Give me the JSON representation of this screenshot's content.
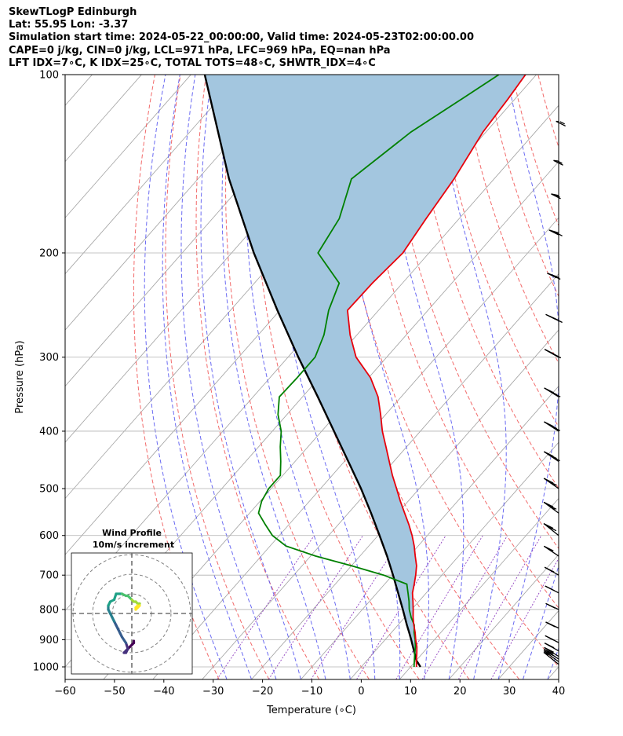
{
  "title_lines": [
    "SkewTLogP Edinburgh",
    "Lat: 55.95   Lon: -3.37",
    "Simulation start time: 2024-05-22_00:00:00, Valid time: 2024-05-23T02:00:00.00",
    "CAPE=0 j/kg, CIN=0 j/kg, LCL=971 hPa, LFC=969 hPa, EQ=nan hPa",
    "LFT IDX=7∘C, K IDX=25∘C, TOTAL TOTS=48∘C, SHWTR_IDX=4∘C"
  ],
  "colors": {
    "temperature": "#e8000b",
    "dewpoint": "#008000",
    "parcel": "#000000",
    "cape_fill": "#a3c6df",
    "dry_adiabat": "#f05050",
    "moist_adiabat": "#5050f0",
    "isotherm": "#a0a0a0",
    "mixing_ratio": "#9040c0"
  },
  "chart_data": {
    "type": "line",
    "subtype": "skew-t log-p",
    "xlabel": "Temperature (∘C)",
    "ylabel": "Pressure (hPa)",
    "xlim": [
      -60,
      40
    ],
    "ylim": [
      1050,
      100
    ],
    "xticks": [
      -60,
      -50,
      -40,
      -30,
      -20,
      -10,
      0,
      10,
      20,
      30,
      40
    ],
    "yticks": [
      1000,
      900,
      800,
      700,
      600,
      500,
      400,
      300,
      200,
      100
    ],
    "series": [
      {
        "name": "Temperature",
        "pressure": [
          1000,
          975,
          950,
          925,
          900,
          875,
          850,
          825,
          800,
          775,
          750,
          725,
          700,
          675,
          650,
          625,
          600,
          575,
          550,
          525,
          500,
          475,
          450,
          425,
          400,
          375,
          350,
          325,
          300,
          275,
          250,
          225,
          200,
          175,
          150,
          125,
          110,
          100
        ],
        "values": [
          11.2,
          10.0,
          8.9,
          7.7,
          6.2,
          4.8,
          3.2,
          1.7,
          0.3,
          -1.2,
          -2.8,
          -4.0,
          -5.3,
          -6.8,
          -8.8,
          -10.8,
          -13.1,
          -15.7,
          -18.6,
          -21.6,
          -24.6,
          -27.8,
          -30.9,
          -34.2,
          -37.7,
          -41.0,
          -44.7,
          -49.6,
          -56.2,
          -61.4,
          -66.3,
          -66.1,
          -65.3,
          -66.7,
          -68.1,
          -70.6,
          -71.4,
          -72.2
        ]
      },
      {
        "name": "Dewpoint",
        "pressure": [
          1000,
          975,
          950,
          925,
          900,
          875,
          850,
          825,
          800,
          775,
          750,
          725,
          700,
          675,
          650,
          625,
          600,
          575,
          550,
          525,
          500,
          475,
          450,
          425,
          400,
          375,
          350,
          325,
          300,
          275,
          250,
          225,
          200,
          175,
          150,
          125,
          110,
          100
        ],
        "values": [
          10.7,
          9.6,
          8.5,
          7.4,
          6.1,
          4.6,
          3.3,
          1.3,
          -0.5,
          -2.0,
          -3.7,
          -5.5,
          -11.8,
          -20.0,
          -29.0,
          -36.8,
          -41.4,
          -44.8,
          -48.2,
          -49.7,
          -50.5,
          -50.5,
          -52.9,
          -55.6,
          -58.2,
          -61.8,
          -64.7,
          -64.5,
          -64.5,
          -66.7,
          -70.1,
          -72.8,
          -82.5,
          -84.3,
          -88.9,
          -85.2,
          -80.8,
          -77.6
        ]
      },
      {
        "name": "Parcel",
        "pressure": [
          1000,
          975,
          950,
          925,
          900,
          875,
          850,
          800,
          750,
          700,
          650,
          600,
          550,
          500,
          450,
          400,
          350,
          300,
          250,
          200,
          150,
          100
        ],
        "values": [
          12.0,
          10.0,
          8.5,
          6.9,
          5.3,
          3.6,
          1.8,
          -1.8,
          -5.7,
          -9.9,
          -14.5,
          -19.7,
          -25.4,
          -31.8,
          -39.2,
          -47.5,
          -56.9,
          -67.9,
          -80.5,
          -95.5,
          -113.7,
          -137.2
        ]
      }
    ],
    "shading": "CAPE region between parcel and temperature (blue)",
    "hodograph": {
      "title": "Wind Profile",
      "subtitle": "10m/s increment",
      "rings_ms": [
        10,
        20,
        30
      ],
      "u": [
        1,
        1,
        0,
        -1,
        -2,
        -3,
        -4,
        -3,
        -2,
        -3,
        -5,
        -6,
        -7,
        -8,
        -9,
        -10,
        -11,
        -12,
        -12,
        -11,
        -9,
        -8,
        -6,
        -5,
        -3,
        -2,
        -1,
        0,
        1,
        2,
        3,
        4,
        3,
        2,
        2,
        3,
        4
      ],
      "v": [
        -14,
        -15,
        -16,
        -17,
        -18,
        -19,
        -20,
        -20,
        -18,
        -15,
        -12,
        -10,
        -8,
        -6,
        -4,
        -2,
        0,
        2,
        4,
        6,
        7,
        10,
        10,
        10,
        9,
        9,
        8,
        7,
        6,
        6,
        5,
        5,
        4,
        3,
        2,
        3,
        4
      ]
    },
    "wind_barbs": {
      "pressure": [
        990,
        980,
        970,
        960,
        940,
        910,
        860,
        800,
        750,
        700,
        650,
        600,
        550,
        500,
        450,
        400,
        350,
        300,
        260,
        220,
        185,
        160,
        140,
        120
      ],
      "speed_kt": [
        5,
        10,
        10,
        15,
        15,
        15,
        15,
        10,
        10,
        10,
        15,
        20,
        25,
        25,
        30,
        35,
        35,
        35,
        30,
        25,
        20,
        15,
        15,
        15
      ],
      "direction_deg": [
        270,
        275,
        280,
        285,
        290,
        295,
        300,
        300,
        295,
        290,
        280,
        270,
        265,
        262,
        260,
        258,
        255,
        250,
        240,
        230,
        220,
        210,
        200,
        190
      ]
    }
  }
}
